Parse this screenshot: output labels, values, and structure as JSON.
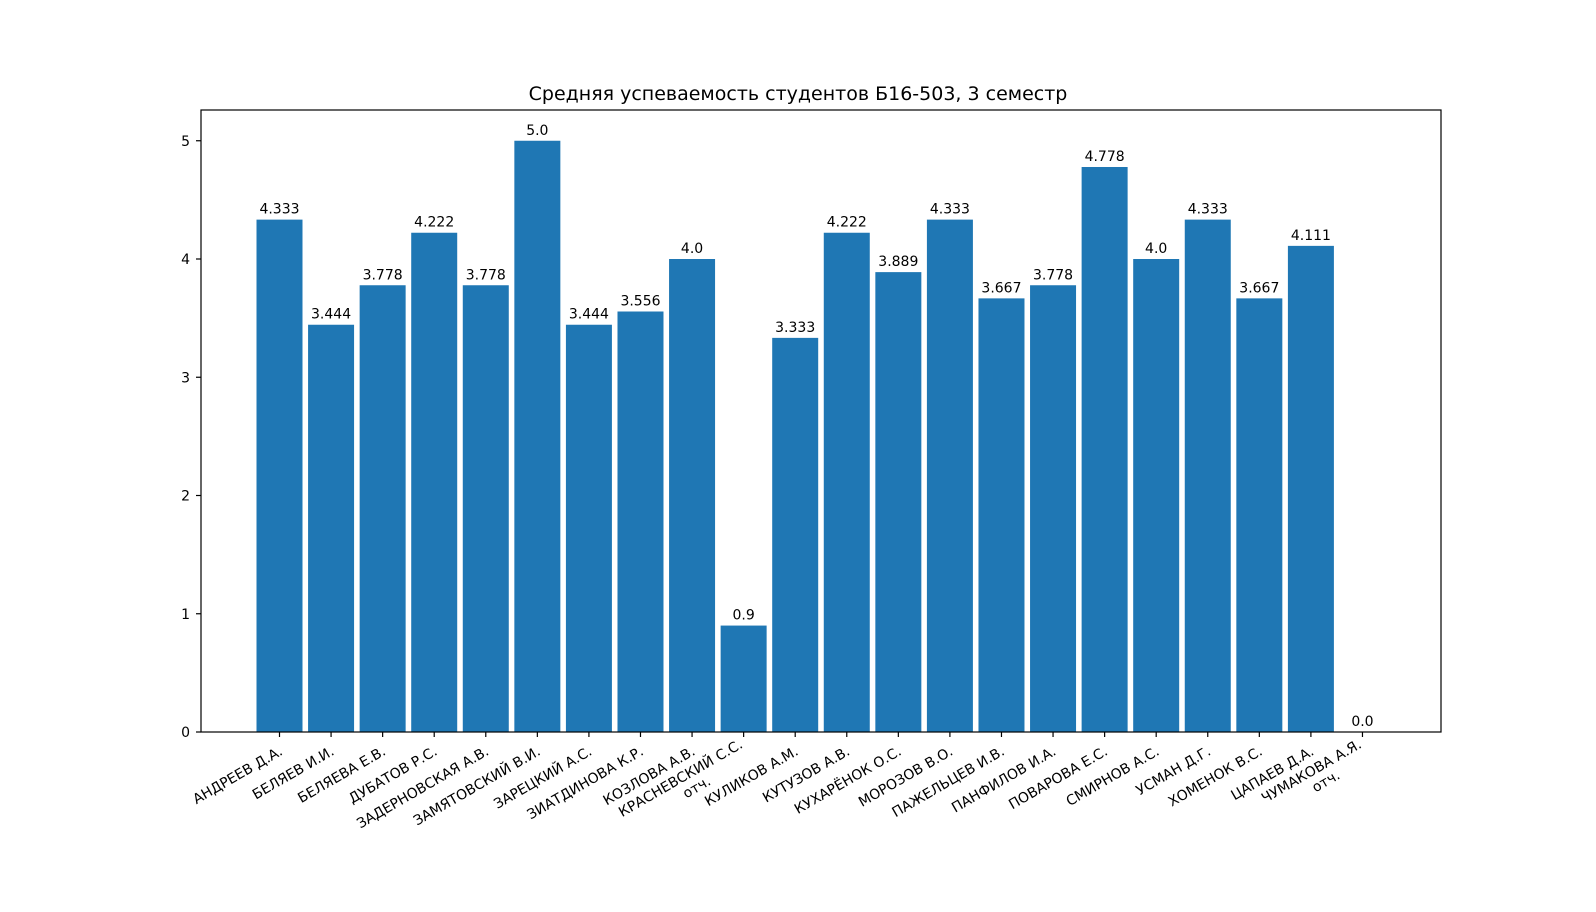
{
  "chart_data": {
    "type": "bar",
    "title": "Средняя успеваемость студентов Б16-503, 3 семестр",
    "xlabel": "",
    "ylabel": "",
    "ylim": [
      0,
      5.26
    ],
    "yticks": [
      "0",
      "1",
      "2",
      "3",
      "4",
      "5"
    ],
    "color": "#1f77b4",
    "grid": false,
    "categories": [
      "АНДРЕЕВ Д.А.",
      "БЕЛЯЕВ И.И.",
      "БЕЛЯЕВА Е.В.",
      "ДУБАТОВ Р.С.",
      "ЗАДЕРНОВСКАЯ А.В.",
      "ЗАМЯТОВСКИЙ В.И.",
      "ЗАРЕЦКИЙ А.С.",
      "ЗИАТДИНОВА К.Р.",
      "КОЗЛОВА А.В.",
      "КРАСНЕВСКИЙ С.С.\nотч.",
      "КУЛИКОВ А.М.",
      "КУТУЗОВ А.В.",
      "КУХАРЁНОК О.С.",
      "МОРОЗОВ В.О.",
      "ПАЖЕЛЬЦЕВ И.В.",
      "ПАНФИЛОВ И.А.",
      "ПОВАРОВА Е.С.",
      "СМИРНОВ А.С.",
      "УСМАН Д.Г.",
      "ХОМЕНОК В.С.",
      "ЦАПАЕВ Д.А.",
      "ЧУМАКОВА А.Я.\nотч."
    ],
    "values": [
      4.333,
      3.444,
      3.778,
      4.222,
      3.778,
      5.0,
      3.444,
      3.556,
      4.0,
      0.9,
      3.333,
      4.222,
      3.889,
      4.333,
      3.667,
      3.778,
      4.778,
      4.0,
      4.333,
      3.667,
      4.111,
      0.0
    ],
    "value_labels": [
      "4.333",
      "3.444",
      "3.778",
      "4.222",
      "3.778",
      "5.0",
      "3.444",
      "3.556",
      "4.0",
      "0.9",
      "3.333",
      "4.222",
      "3.889",
      "4.333",
      "3.667",
      "3.778",
      "4.778",
      "4.0",
      "4.333",
      "3.667",
      "4.111",
      "0.0"
    ]
  }
}
